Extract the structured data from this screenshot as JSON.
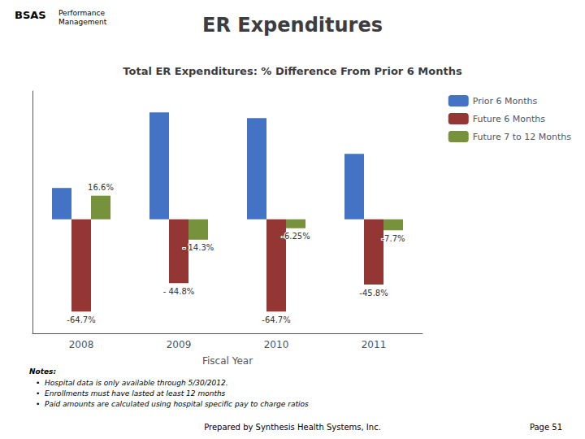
{
  "chart_data": {
    "type": "bar",
    "title": "ER Expenditures",
    "subtitle": "Total ER Expenditures: % Difference From Prior 6 Months",
    "xlabel": "Fiscal Year",
    "categories": [
      "2008",
      "2009",
      "2010",
      "2011"
    ],
    "series": [
      {
        "name": "Prior 6 Months",
        "color": "#4472c4",
        "values": [
          22,
          75,
          71,
          46
        ]
      },
      {
        "name": "Future 6 Months",
        "color": "#943634",
        "values": [
          -64.7,
          -44.8,
          -64.7,
          -45.8
        ],
        "value_labels": [
          "-64.7%",
          "- 44.8%",
          "-64.7%",
          "-45.8%"
        ]
      },
      {
        "name": "Future 7 to 12 Months",
        "color": "#76923c",
        "values": [
          16.6,
          -14.3,
          -6.25,
          -7.7
        ],
        "value_labels": [
          "16.6%",
          "- 14.3%",
          "-6.25%",
          "-7.7%"
        ]
      }
    ],
    "ylim": [
      -80,
      90
    ],
    "yticks": [],
    "tick_labels": "x",
    "grid": false,
    "legend": "upper right",
    "annotations": {
      "header": [
        "BSAS",
        "Performance\nManagement"
      ],
      "notes_heading": "Notes:",
      "notes": [
        "•  Hospital data is only available through 5/30/2012.",
        "•  Enrollments must have lasted at least 12 months",
        "•  Paid amounts are calculated using hospital specific pay to charge ratios"
      ],
      "footer": "Prepared by Synthesis Health Systems, Inc.",
      "page": "Page 51"
    }
  }
}
